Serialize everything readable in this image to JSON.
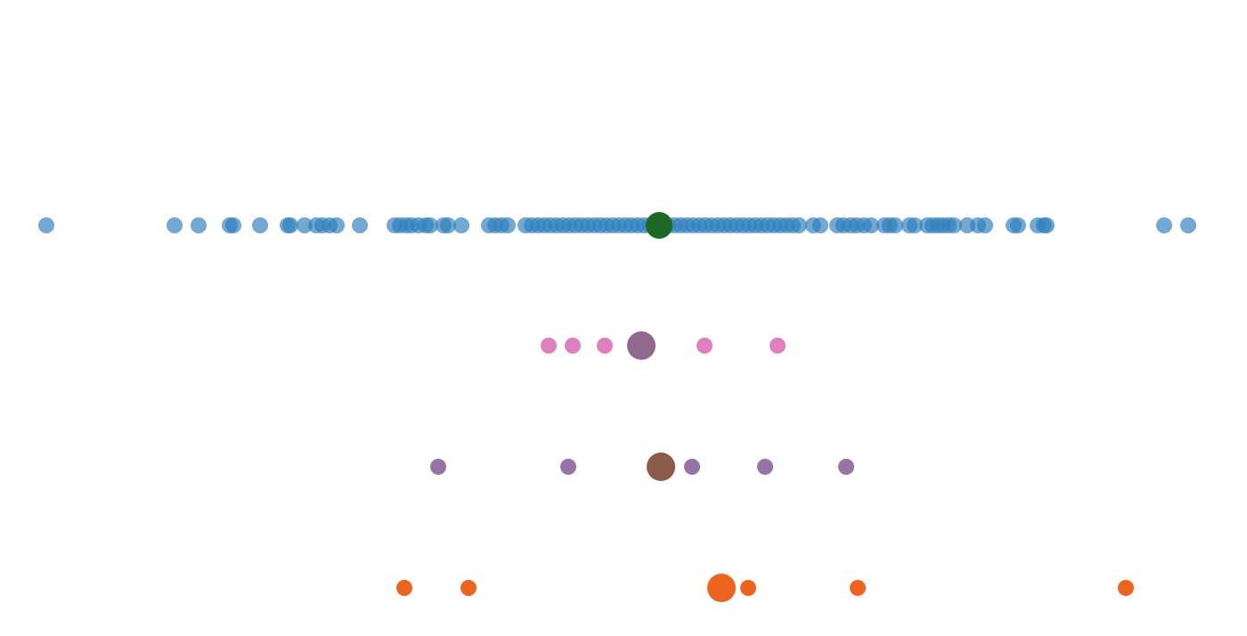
{
  "chart_data": {
    "type": "scatter",
    "title": "",
    "xlabel": "",
    "ylabel": "",
    "grid": false,
    "legend": "none",
    "axes_visible": false,
    "xlim": [
      0,
      1400
    ],
    "series": [
      {
        "color": "#2f7fbb",
        "opacity": 0.68,
        "values": [
          52,
          196,
          223,
          258,
          262,
          292,
          323,
          326,
          342,
          355,
          362,
          370,
          378,
          404,
          443,
          449,
          456,
          462,
          470,
          478,
          483,
          498,
          503,
          518,
          549,
          556,
          563,
          570,
          590,
          597,
          604,
          611,
          618,
          625,
          632,
          639,
          646,
          653,
          660,
          667,
          674,
          681,
          688,
          695,
          702,
          709,
          716,
          723,
          730,
          750,
          757,
          764,
          771,
          778,
          785,
          792,
          799,
          806,
          813,
          820,
          827,
          834,
          841,
          848,
          855,
          862,
          869,
          876,
          883,
          890,
          897,
          913,
          921,
          940,
          947,
          955,
          962,
          970,
          978,
          993,
          999,
          1005,
          1021,
          1027,
          1041,
          1047,
          1053,
          1059,
          1065,
          1071,
          1086,
          1098,
          1106,
          1138,
          1143,
          1165,
          1172,
          1175,
          1307,
          1334
        ],
        "summary": {
          "value": 740,
          "color": "#1e6a25"
        }
      },
      {
        "color": "#e07fbd",
        "opacity": 1,
        "values": [
          616,
          643,
          679,
          791,
          873
        ],
        "summary": {
          "value": 720,
          "color": "#8e6a8e"
        }
      },
      {
        "color": "#9774a8",
        "opacity": 1,
        "values": [
          492,
          638,
          777,
          859,
          950
        ],
        "summary": {
          "value": 742,
          "color": "#8a5b4a"
        }
      },
      {
        "color": "#ec6420",
        "opacity": 1,
        "values": [
          454,
          526,
          840,
          963,
          1264
        ],
        "summary": {
          "value": 810,
          "color": "#ec6420"
        }
      }
    ]
  }
}
